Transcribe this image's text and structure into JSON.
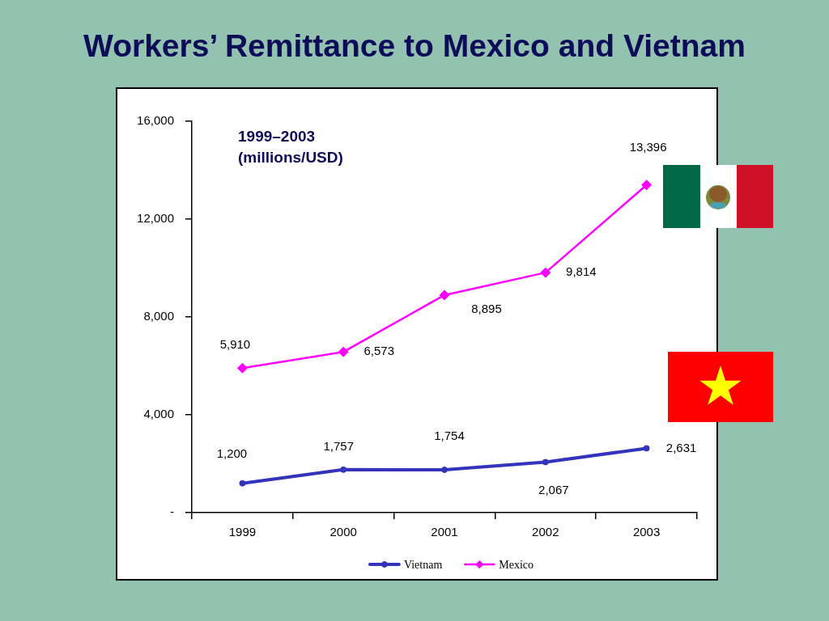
{
  "chart_data": {
    "type": "line",
    "title": "Workers’ Remittance to Mexico and Vietnam",
    "subtitle": "1999–2003 (millions/USD)",
    "categories": [
      "1999",
      "2000",
      "2001",
      "2002",
      "2003"
    ],
    "series": [
      {
        "name": "Vietnam",
        "color": "#3333bb",
        "marker": "circle",
        "values": [
          1200,
          1757,
          1754,
          2067,
          2631
        ],
        "value_labels": [
          "1,200",
          "1,757",
          "1,754",
          "2,067",
          "2,631"
        ]
      },
      {
        "name": "Mexico",
        "color": "#ff00ff",
        "marker": "diamond",
        "values": [
          5910,
          6573,
          8895,
          9814,
          13396
        ],
        "value_labels": [
          "5,910",
          "6,573",
          "8,895",
          "9,814",
          "13,396"
        ]
      }
    ],
    "ylim": [
      0,
      16000
    ],
    "yticks": [
      {
        "value": 0,
        "label": "-"
      },
      {
        "value": 4000,
        "label": "4,000"
      },
      {
        "value": 8000,
        "label": "8,000"
      },
      {
        "value": 12000,
        "label": "12,000"
      },
      {
        "value": 16000,
        "label": "16,000"
      }
    ],
    "grid": false,
    "legend": "bottom"
  }
}
